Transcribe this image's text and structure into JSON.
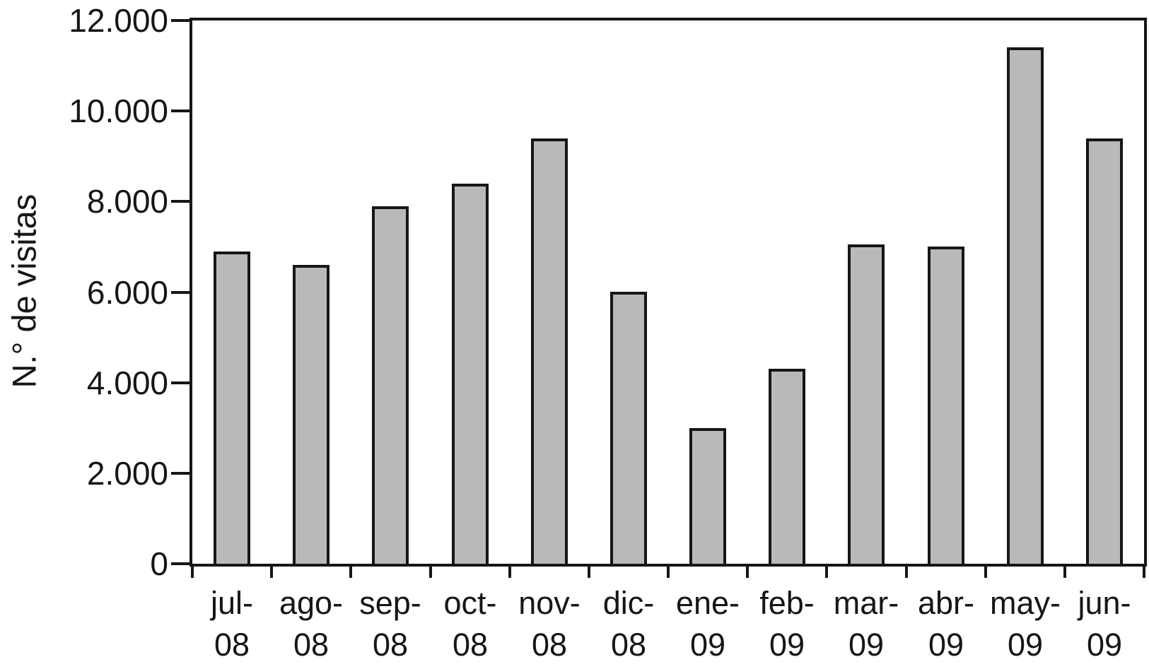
{
  "chart_data": {
    "type": "bar",
    "title": "",
    "xlabel": "",
    "ylabel": "N.° de visitas",
    "categories": [
      "jul-08",
      "ago-08",
      "sep-08",
      "oct-08",
      "nov-08",
      "dic-08",
      "ene-09",
      "feb-09",
      "mar-09",
      "abr-09",
      "may-09",
      "jun-09"
    ],
    "values": [
      6900,
      6600,
      7900,
      8400,
      9400,
      6000,
      3000,
      4300,
      7050,
      7000,
      11400,
      9400
    ],
    "xtick_display": [
      [
        "jul-",
        "08"
      ],
      [
        "ago-",
        "08"
      ],
      [
        "sep-",
        "08"
      ],
      [
        "oct-",
        "08"
      ],
      [
        "nov-",
        "08"
      ],
      [
        "dic-",
        "08"
      ],
      [
        "ene-",
        "09"
      ],
      [
        "feb-",
        "09"
      ],
      [
        "mar-",
        "09"
      ],
      [
        "abr-",
        "09"
      ],
      [
        "may-",
        "09"
      ],
      [
        "jun-",
        "09"
      ]
    ],
    "ylim": [
      0,
      12000
    ],
    "yticks": [
      0,
      2000,
      4000,
      6000,
      8000,
      10000,
      12000
    ],
    "ytick_labels": [
      "0",
      "2.000",
      "4.000",
      "6.000",
      "8.000",
      "10.000",
      "12.000"
    ],
    "grid": false,
    "legend": false,
    "plot_frame": true,
    "bar_fill_color": "#b9b9b9",
    "bar_border_color": "#161616",
    "axis_color": "#161616",
    "text_color": "#161616",
    "background_color": "#ffffff"
  }
}
